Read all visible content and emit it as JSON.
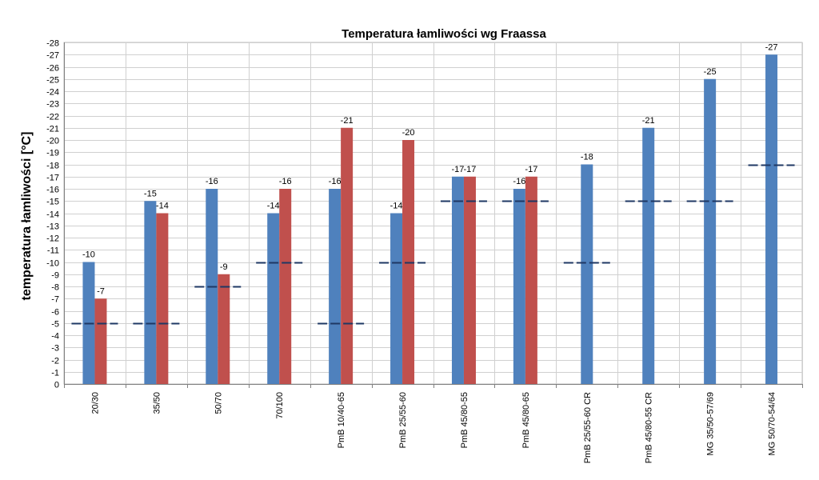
{
  "chart_data": {
    "type": "bar",
    "title": "Temperatura łamliwości wg Fraassa",
    "ylabel": "temperatura łamliwości [°C]",
    "xlabel": "",
    "ylim": [
      0,
      -28
    ],
    "y_ticks": [
      "0",
      "-1",
      "-2",
      "-3",
      "-4",
      "-5",
      "-6",
      "-7",
      "-8",
      "-9",
      "-10",
      "-11",
      "-12",
      "-13",
      "-14",
      "-15",
      "-16",
      "-17",
      "-18",
      "-19",
      "-20",
      "-21",
      "-22",
      "-23",
      "-24",
      "-25",
      "-26",
      "-27",
      "-28"
    ],
    "grid": true,
    "legend": "none",
    "categories": [
      "20/30",
      "35/50",
      "50/70",
      "70/100",
      "PmB 10/40-65",
      "PmB 25/55-60",
      "PmB 45/80-55",
      "PmB 45/80-65",
      "PmB 25/55-60 CR",
      "PmB 45/80-55 CR",
      "MG 35/50-57/69",
      "MG 50/70-54/64"
    ],
    "series": [
      {
        "color": "#4f81bd",
        "values": [
          -10,
          -15,
          -16,
          -14,
          -16,
          -14,
          -17,
          -16,
          -18,
          -21,
          -25,
          -27
        ],
        "labels": [
          "-10",
          "-15",
          "-16",
          "-14",
          "-16",
          "-14",
          "-17",
          "-16",
          "-18",
          "-21",
          "-25",
          "-27"
        ]
      },
      {
        "color": "#c0504d",
        "values": [
          -7,
          -14,
          -9,
          -16,
          -21,
          -20,
          -17,
          -17,
          null,
          null,
          null,
          null
        ],
        "labels": [
          "-7",
          "-14",
          "-9",
          "-16",
          "-21",
          "-20",
          "-17",
          "-17",
          null,
          null,
          null,
          null
        ]
      }
    ],
    "reference_levels": {
      "color": "#1f3864",
      "values": [
        -5,
        -5,
        -8,
        -10,
        -5,
        -10,
        -15,
        -15,
        -10,
        -15,
        -15,
        -18
      ]
    }
  }
}
